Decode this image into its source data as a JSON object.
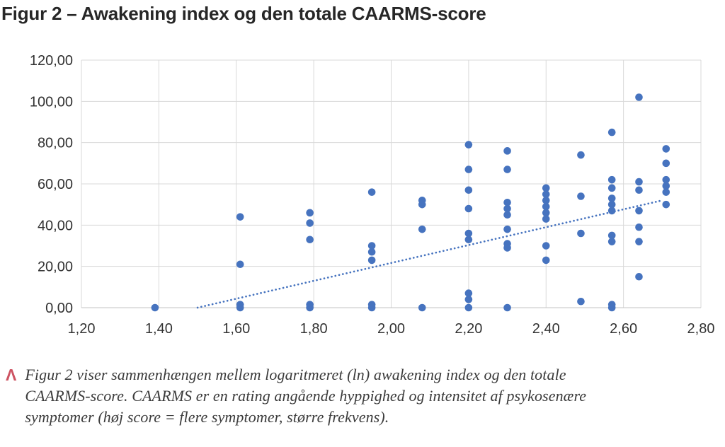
{
  "chart_data": {
    "type": "scatter",
    "title": "Figur 2 – Awakening index og den totale CAARMS-score",
    "xlabel": "",
    "ylabel": "",
    "xlim": [
      1.2,
      2.8
    ],
    "ylim": [
      0,
      120
    ],
    "grid": true,
    "legend": "none",
    "x_ticks": [
      "1,20",
      "1,40",
      "1,60",
      "1,80",
      "2,00",
      "2,20",
      "2,40",
      "2,60",
      "2,80"
    ],
    "x_tick_values": [
      1.2,
      1.4,
      1.6,
      1.8,
      2.0,
      2.2,
      2.4,
      2.6,
      2.8
    ],
    "y_ticks": [
      "0,00",
      "20,00",
      "40,00",
      "60,00",
      "80,00",
      "100,00",
      "120,00"
    ],
    "y_tick_values": [
      0,
      20,
      40,
      60,
      80,
      100,
      120
    ],
    "point_color": "#4673bf",
    "grid_color": "#d9d9d9",
    "axis_color": "#c3c3c3",
    "tick_color": "#323232",
    "points": [
      [
        1.39,
        0
      ],
      [
        1.61,
        44
      ],
      [
        1.61,
        21
      ],
      [
        1.61,
        1.5
      ],
      [
        1.61,
        0
      ],
      [
        1.79,
        46
      ],
      [
        1.79,
        41
      ],
      [
        1.79,
        33
      ],
      [
        1.79,
        1.5
      ],
      [
        1.79,
        0
      ],
      [
        1.95,
        56
      ],
      [
        1.95,
        30
      ],
      [
        1.95,
        27
      ],
      [
        1.95,
        23
      ],
      [
        1.95,
        1.5
      ],
      [
        1.95,
        0
      ],
      [
        2.08,
        52
      ],
      [
        2.08,
        50
      ],
      [
        2.08,
        38
      ],
      [
        2.08,
        0
      ],
      [
        2.2,
        79
      ],
      [
        2.2,
        67
      ],
      [
        2.2,
        57
      ],
      [
        2.2,
        48
      ],
      [
        2.2,
        36
      ],
      [
        2.2,
        33
      ],
      [
        2.2,
        7
      ],
      [
        2.2,
        4
      ],
      [
        2.2,
        0
      ],
      [
        2.3,
        76
      ],
      [
        2.3,
        67
      ],
      [
        2.3,
        51
      ],
      [
        2.3,
        48
      ],
      [
        2.3,
        45
      ],
      [
        2.3,
        38
      ],
      [
        2.3,
        31
      ],
      [
        2.3,
        29
      ],
      [
        2.3,
        0
      ],
      [
        2.4,
        58
      ],
      [
        2.4,
        55
      ],
      [
        2.4,
        52
      ],
      [
        2.4,
        49
      ],
      [
        2.4,
        46
      ],
      [
        2.4,
        43
      ],
      [
        2.4,
        30
      ],
      [
        2.4,
        23
      ],
      [
        2.49,
        74
      ],
      [
        2.49,
        54
      ],
      [
        2.49,
        36
      ],
      [
        2.49,
        3
      ],
      [
        2.57,
        85
      ],
      [
        2.57,
        62
      ],
      [
        2.57,
        58
      ],
      [
        2.57,
        53
      ],
      [
        2.57,
        50
      ],
      [
        2.57,
        47
      ],
      [
        2.57,
        35
      ],
      [
        2.57,
        32
      ],
      [
        2.57,
        1.5
      ],
      [
        2.57,
        0
      ],
      [
        2.64,
        102
      ],
      [
        2.64,
        61
      ],
      [
        2.64,
        57
      ],
      [
        2.64,
        47
      ],
      [
        2.64,
        39
      ],
      [
        2.64,
        32
      ],
      [
        2.64,
        15
      ],
      [
        2.71,
        77
      ],
      [
        2.71,
        70
      ],
      [
        2.71,
        62
      ],
      [
        2.71,
        59
      ],
      [
        2.71,
        56
      ],
      [
        2.71,
        50
      ]
    ],
    "trendline": {
      "x1": 1.5,
      "y1": 0,
      "x2": 2.7,
      "y2": 52,
      "style": "dotted",
      "color": "#4673bf"
    }
  },
  "caption": {
    "marker": "Λ",
    "marker_color": "#cd5362",
    "lines": [
      "Figur 2 viser sammenhængen mellem logaritmeret (ln) awakening index og den totale",
      "CAARMS-score. CAARMS er en rating angående hyppighed og intensitet af psykosenære",
      "symptomer (høj score = flere symptomer, større frekvens)."
    ]
  }
}
